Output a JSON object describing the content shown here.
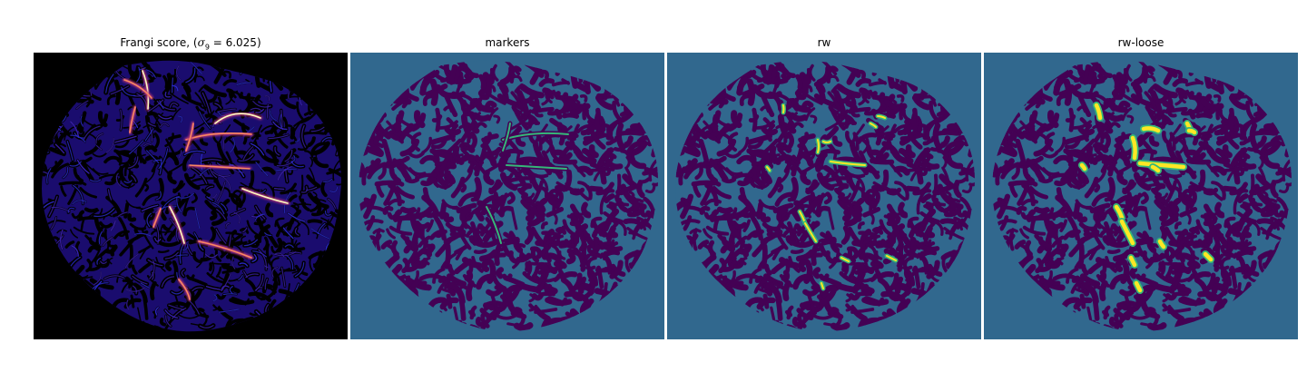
{
  "titles": {
    "frangi": "Frangi score, (",
    "frangi_sigma_symbol": "σ",
    "frangi_sigma_sub": "9",
    "frangi_sigma_rest": " = 6.025)",
    "markers": "markers",
    "rw": "rw",
    "rw_loose": "rw-loose"
  },
  "colors": {
    "background_black": "#000000",
    "viridis_dark": "#440154",
    "viridis_mid": "#31688e",
    "viridis_green": "#35b779",
    "viridis_yellow": "#fde725",
    "magma_purple": "#2c115f",
    "magma_violet": "#b5367a",
    "magma_orange": "#fb8861",
    "magma_yellow": "#fcfdbf"
  },
  "colormaps": {
    "frangi": "magma",
    "segmentations": "viridis"
  }
}
